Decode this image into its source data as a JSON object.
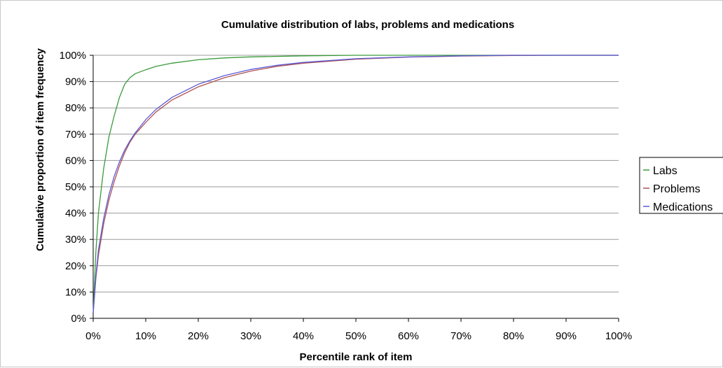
{
  "chart_data": {
    "type": "line",
    "title": "Cumulative distribution of labs, problems and medications",
    "xlabel": "Percentile rank of item",
    "ylabel": "Cumulative proportion of item frequency",
    "xlim": [
      0,
      100
    ],
    "ylim": [
      0,
      100
    ],
    "x_ticks": [
      0,
      10,
      20,
      30,
      40,
      50,
      60,
      70,
      80,
      90,
      100
    ],
    "y_ticks": [
      0,
      10,
      20,
      30,
      40,
      50,
      60,
      70,
      80,
      90,
      100
    ],
    "x_tick_labels": [
      "0%",
      "10%",
      "20%",
      "30%",
      "40%",
      "50%",
      "60%",
      "70%",
      "80%",
      "90%",
      "100%"
    ],
    "y_tick_labels": [
      "0%",
      "10%",
      "20%",
      "30%",
      "40%",
      "50%",
      "60%",
      "70%",
      "80%",
      "90%",
      "100%"
    ],
    "grid": "horizontal",
    "legend_position": "right",
    "series": [
      {
        "name": "Labs",
        "color": "#3a9a3a",
        "points": [
          [
            0,
            2
          ],
          [
            0.5,
            25
          ],
          [
            1,
            40
          ],
          [
            2,
            57
          ],
          [
            3,
            69
          ],
          [
            4,
            77
          ],
          [
            5,
            84
          ],
          [
            6,
            89
          ],
          [
            7,
            91.5
          ],
          [
            8,
            93
          ],
          [
            10,
            94.5
          ],
          [
            12,
            95.8
          ],
          [
            15,
            97
          ],
          [
            20,
            98.3
          ],
          [
            25,
            99
          ],
          [
            30,
            99.4
          ],
          [
            40,
            99.8
          ],
          [
            50,
            100
          ],
          [
            60,
            100
          ],
          [
            80,
            100
          ],
          [
            100,
            100
          ]
        ]
      },
      {
        "name": "Problems",
        "color": "#b05050",
        "points": [
          [
            0,
            2
          ],
          [
            0.5,
            15
          ],
          [
            1,
            24
          ],
          [
            2,
            36
          ],
          [
            3,
            45
          ],
          [
            4,
            52
          ],
          [
            5,
            58
          ],
          [
            6,
            63
          ],
          [
            7,
            67
          ],
          [
            8,
            70
          ],
          [
            10,
            74.5
          ],
          [
            12,
            78.5
          ],
          [
            15,
            83
          ],
          [
            20,
            88
          ],
          [
            25,
            91.5
          ],
          [
            30,
            94
          ],
          [
            35,
            95.8
          ],
          [
            40,
            97
          ],
          [
            50,
            98.5
          ],
          [
            60,
            99.3
          ],
          [
            70,
            99.7
          ],
          [
            80,
            99.9
          ],
          [
            90,
            100
          ],
          [
            100,
            100
          ]
        ]
      },
      {
        "name": "Medications",
        "color": "#5a5ad8",
        "points": [
          [
            0,
            2
          ],
          [
            0.5,
            16
          ],
          [
            1,
            26
          ],
          [
            2,
            38
          ],
          [
            3,
            47
          ],
          [
            4,
            54
          ],
          [
            5,
            59.5
          ],
          [
            6,
            64
          ],
          [
            7,
            67.5
          ],
          [
            8,
            70.5
          ],
          [
            10,
            75.5
          ],
          [
            12,
            79.5
          ],
          [
            15,
            84
          ],
          [
            20,
            89
          ],
          [
            25,
            92.3
          ],
          [
            30,
            94.6
          ],
          [
            35,
            96.2
          ],
          [
            40,
            97.3
          ],
          [
            50,
            98.7
          ],
          [
            60,
            99.4
          ],
          [
            70,
            99.8
          ],
          [
            80,
            100
          ],
          [
            92,
            100
          ],
          [
            100,
            100
          ]
        ]
      }
    ]
  }
}
